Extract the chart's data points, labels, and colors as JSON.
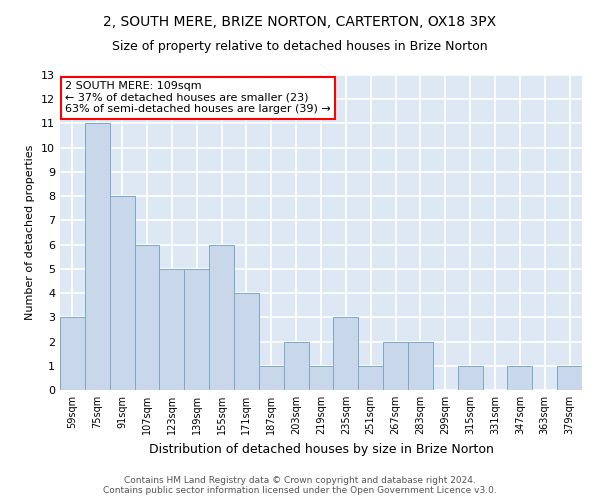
{
  "title1": "2, SOUTH MERE, BRIZE NORTON, CARTERTON, OX18 3PX",
  "title2": "Size of property relative to detached houses in Brize Norton",
  "xlabel": "Distribution of detached houses by size in Brize Norton",
  "ylabel": "Number of detached properties",
  "categories": [
    "59sqm",
    "75sqm",
    "91sqm",
    "107sqm",
    "123sqm",
    "139sqm",
    "155sqm",
    "171sqm",
    "187sqm",
    "203sqm",
    "219sqm",
    "235sqm",
    "251sqm",
    "267sqm",
    "283sqm",
    "299sqm",
    "315sqm",
    "331sqm",
    "347sqm",
    "363sqm",
    "379sqm"
  ],
  "values": [
    3,
    11,
    8,
    6,
    5,
    5,
    6,
    4,
    1,
    2,
    1,
    3,
    1,
    2,
    2,
    0,
    1,
    0,
    1,
    0,
    1
  ],
  "bar_color": "#c8d8ea",
  "bar_edge_color": "#7aaac8",
  "ylim": [
    0,
    13
  ],
  "yticks": [
    0,
    1,
    2,
    3,
    4,
    5,
    6,
    7,
    8,
    9,
    10,
    11,
    12,
    13
  ],
  "background_color": "#dde8f4",
  "grid_color": "white",
  "annotation_line1": "2 SOUTH MERE: 109sqm",
  "annotation_line2": "← 37% of detached houses are smaller (23)",
  "annotation_line3": "63% of semi-detached houses are larger (39) →",
  "annotation_box_color": "white",
  "annotation_box_edge_color": "red",
  "footer_text": "Contains HM Land Registry data © Crown copyright and database right 2024.\nContains public sector information licensed under the Open Government Licence v3.0.",
  "title1_fontsize": 10,
  "title2_fontsize": 9,
  "xlabel_fontsize": 9,
  "ylabel_fontsize": 8,
  "tick_fontsize": 8,
  "xtick_fontsize": 7,
  "annotation_fontsize": 8,
  "footer_fontsize": 6.5
}
